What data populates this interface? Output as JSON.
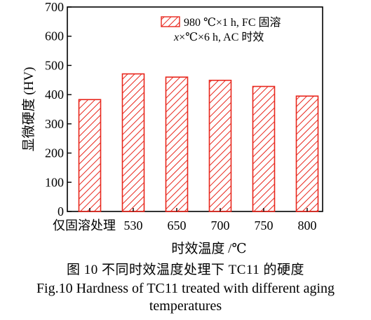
{
  "chart_data": {
    "type": "bar",
    "categories": [
      "仅固溶处理",
      "530",
      "650",
      "700",
      "750",
      "800"
    ],
    "values": [
      383,
      471,
      460,
      449,
      428,
      395
    ],
    "ylabel": "显微硬度 (HV)",
    "xlabel": "时效温度 /℃",
    "ylim": [
      0,
      700
    ],
    "yticks": [
      0,
      100,
      200,
      300,
      400,
      500,
      600,
      700
    ],
    "grid": false,
    "legend": {
      "placement": "top-right",
      "line1": "980 ℃×1 h, FC 固溶",
      "line2_var": "x",
      "line2_rest": "×℃×6 h, AC 时效"
    },
    "bar_style": {
      "edge_color": "#e8261c",
      "hatch_color": "#e8261c",
      "fill": "#ffffff"
    }
  },
  "caption": {
    "cn": "图 10   不同时效温度处理下 TC11 的硬度",
    "en_line1": "Fig.10  Hardness of TC11 treated with different aging",
    "en_line2": "temperatures"
  }
}
